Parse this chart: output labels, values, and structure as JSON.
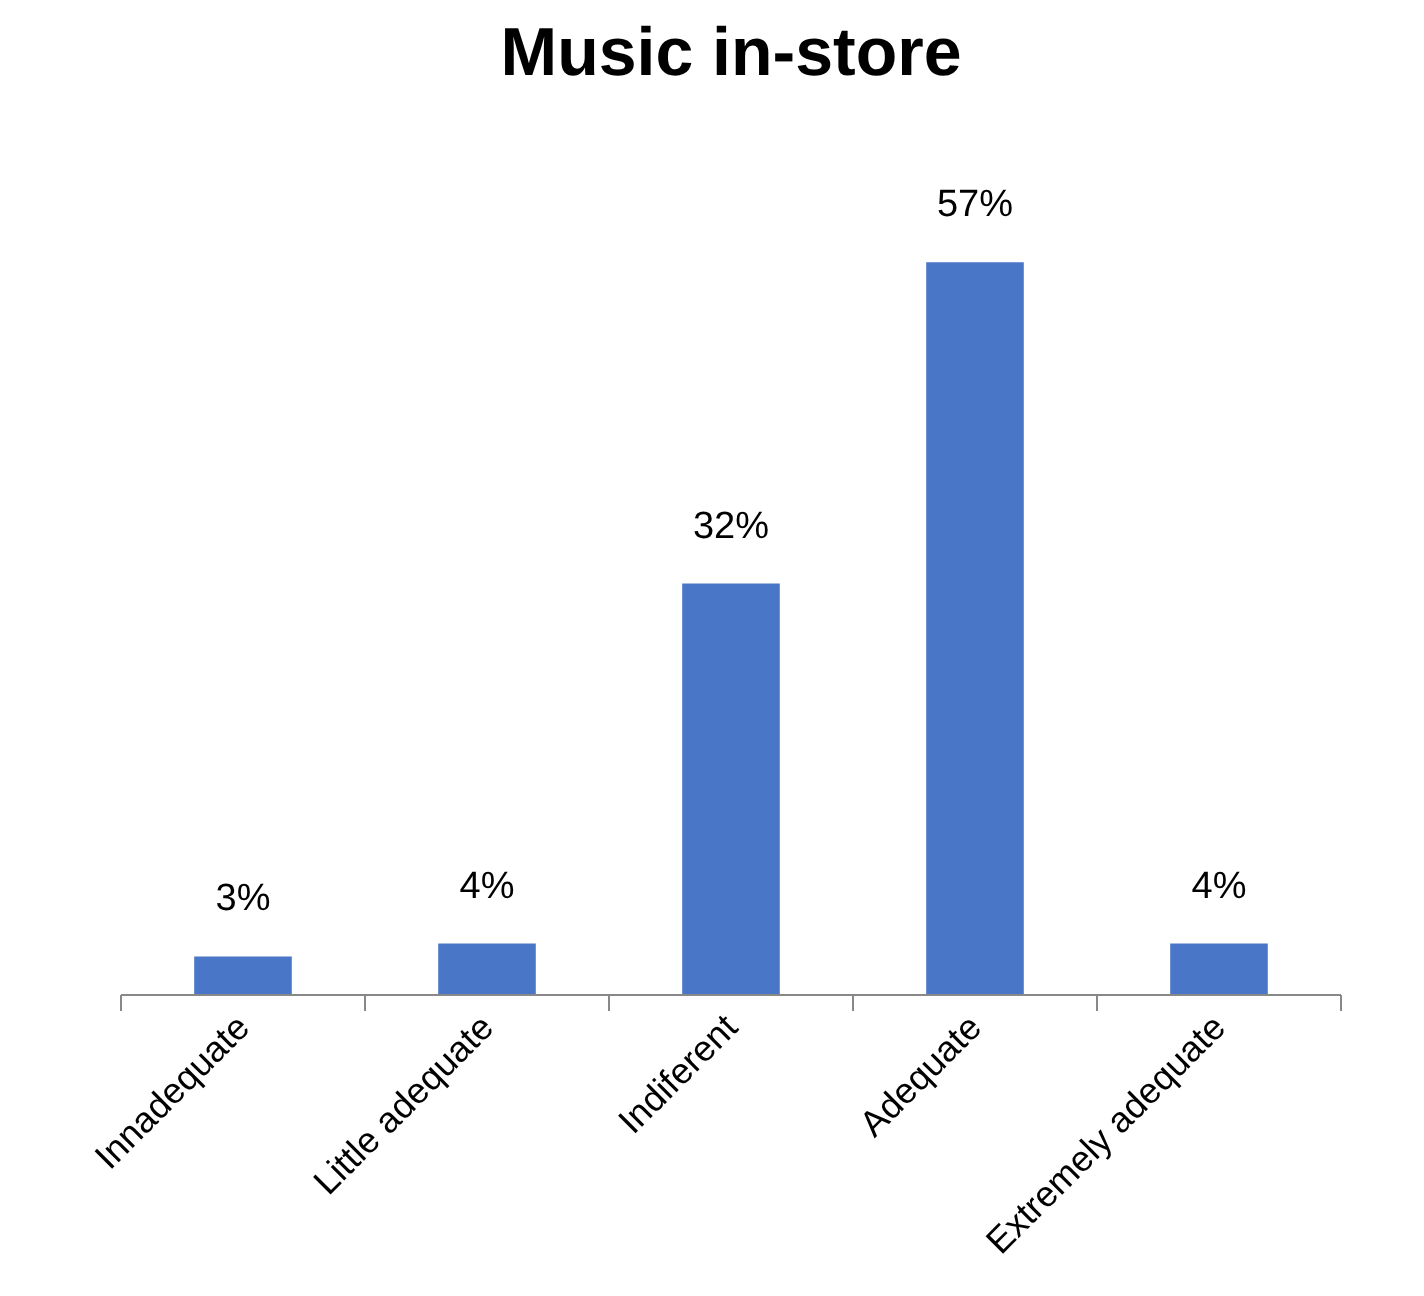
{
  "chart_data": {
    "type": "bar",
    "title": "Music in-store",
    "categories": [
      "Innadequate",
      "Little adequate",
      "Indiferent",
      "Adequate",
      "Extremely adequate"
    ],
    "values": [
      3,
      4,
      32,
      57,
      4
    ],
    "value_labels": [
      "3%",
      "4%",
      "32%",
      "57%",
      "4%"
    ],
    "color": "#4a76c8"
  }
}
